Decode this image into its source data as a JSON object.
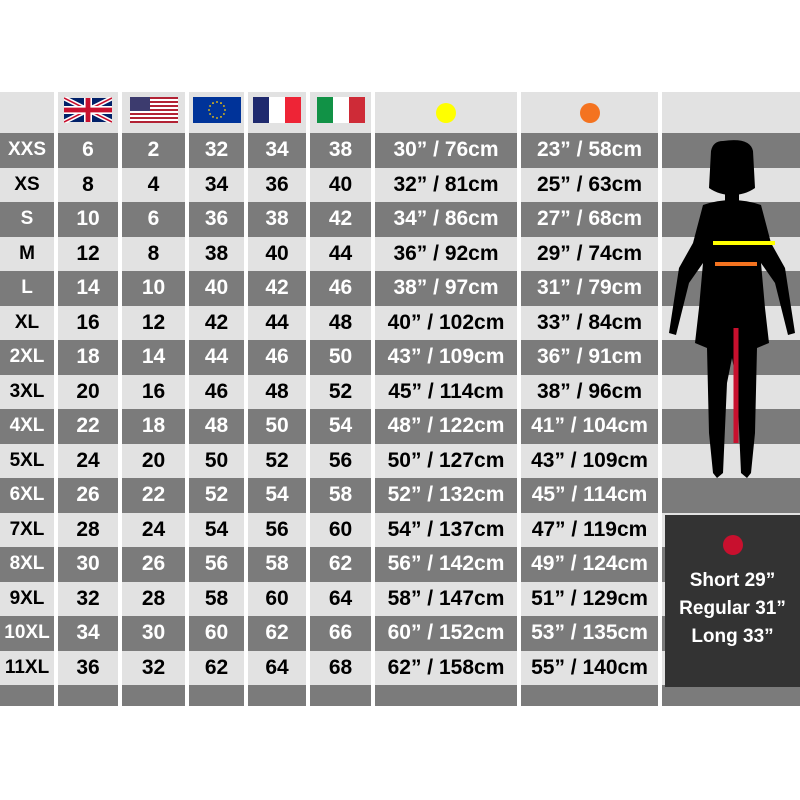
{
  "header": {
    "flags": [
      {
        "icon": "uk-flag-icon"
      },
      {
        "icon": "us-flag-icon"
      },
      {
        "icon": "eu-flag-icon"
      },
      {
        "icon": "france-flag-icon"
      },
      {
        "icon": "italy-flag-icon"
      }
    ],
    "measures": [
      {
        "icon": "yellow-dot-icon",
        "color": "#ffff00"
      },
      {
        "icon": "orange-dot-icon",
        "color": "#f47320"
      }
    ]
  },
  "rows": [
    [
      "XXS",
      "6",
      "2",
      "32",
      "34",
      "38",
      "30” / 76cm",
      "23” / 58cm"
    ],
    [
      "XS",
      "8",
      "4",
      "34",
      "36",
      "40",
      "32” / 81cm",
      "25” / 63cm"
    ],
    [
      "S",
      "10",
      "6",
      "36",
      "38",
      "42",
      "34” / 86cm",
      "27” / 68cm"
    ],
    [
      "M",
      "12",
      "8",
      "38",
      "40",
      "44",
      "36” / 92cm",
      "29” / 74cm"
    ],
    [
      "L",
      "14",
      "10",
      "40",
      "42",
      "46",
      "38” / 97cm",
      "31” / 79cm"
    ],
    [
      "XL",
      "16",
      "12",
      "42",
      "44",
      "48",
      "40” / 102cm",
      "33” / 84cm"
    ],
    [
      "2XL",
      "18",
      "14",
      "44",
      "46",
      "50",
      "43” / 109cm",
      "36” / 91cm"
    ],
    [
      "3XL",
      "20",
      "16",
      "46",
      "48",
      "52",
      "45” / 114cm",
      "38” / 96cm"
    ],
    [
      "4XL",
      "22",
      "18",
      "48",
      "50",
      "54",
      "48” / 122cm",
      "41” / 104cm"
    ],
    [
      "5XL",
      "24",
      "20",
      "50",
      "52",
      "56",
      "50” / 127cm",
      "43” / 109cm"
    ],
    [
      "6XL",
      "26",
      "22",
      "52",
      "54",
      "58",
      "52” / 132cm",
      "45” / 114cm"
    ],
    [
      "7XL",
      "28",
      "24",
      "54",
      "56",
      "60",
      "54” / 137cm",
      "47” / 119cm"
    ],
    [
      "8XL",
      "30",
      "26",
      "56",
      "58",
      "62",
      "56” / 142cm",
      "49” / 124cm"
    ],
    [
      "9XL",
      "32",
      "28",
      "58",
      "60",
      "64",
      "58” / 147cm",
      "51” / 129cm"
    ],
    [
      "10XL",
      "34",
      "30",
      "60",
      "62",
      "66",
      "60” / 152cm",
      "53” / 135cm"
    ],
    [
      "11XL",
      "36",
      "32",
      "62",
      "64",
      "68",
      "62” / 158cm",
      "55” / 140cm"
    ]
  ],
  "inseam": {
    "icon": "red-dot-icon",
    "color": "#c8102e",
    "lines": [
      "Short 29”",
      "Regular 31”",
      "Long 33”"
    ]
  },
  "colors": {
    "dark_row": "#7b7b7b",
    "light_row": "#e2e2e2",
    "waist": "#ffff00",
    "hip": "#f47320",
    "inseam": "#c8102e"
  }
}
